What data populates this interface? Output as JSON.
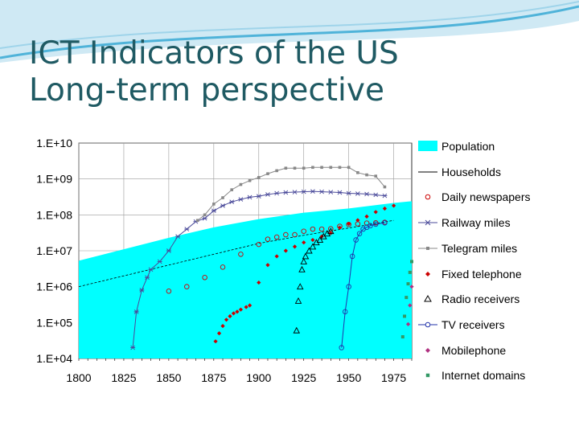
{
  "slide": {
    "title_line1": "ICT Indicators of the US",
    "title_line2": "Long-term perspective",
    "colors": {
      "title": "#1f5a63",
      "swoosh": "#4fb3d9"
    }
  },
  "chart_data": {
    "type": "scatter",
    "title": "",
    "xlabel": "",
    "ylabel": "",
    "x_scale": "linear",
    "y_scale": "log",
    "xlim": [
      1800,
      1985
    ],
    "ylim": [
      10000,
      10000000000
    ],
    "grid": {
      "x": true,
      "y": true
    },
    "legend_position": "right",
    "x_ticks": [
      "1800",
      "1825",
      "1850",
      "1875",
      "1900",
      "1925",
      "1950",
      "1975"
    ],
    "x_tick_values": [
      1800,
      1825,
      1850,
      1875,
      1900,
      1925,
      1950,
      1975
    ],
    "y_ticks": [
      "1.E+04",
      "1.E+05",
      "1.E+06",
      "1.E+07",
      "1.E+08",
      "1.E+09",
      "1.E+10"
    ],
    "y_tick_values": [
      10000,
      100000,
      1000000,
      10000000,
      100000000,
      1000000000,
      10000000000
    ],
    "series": [
      {
        "name": "Population",
        "style": "area",
        "color": "#00ffff",
        "x": [
          1800,
          1825,
          1850,
          1875,
          1900,
          1925,
          1950,
          1975,
          1985
        ],
        "y": [
          5300000,
          11000000,
          23000000,
          45000000,
          76000000,
          115000000,
          151000000,
          215000000,
          240000000
        ]
      },
      {
        "name": "Households",
        "style": "line",
        "color": "#000000",
        "x": [
          1800,
          1825,
          1850,
          1875,
          1900,
          1925,
          1950,
          1975
        ],
        "y": [
          1000000,
          2000000,
          4000000,
          8000000,
          16000000,
          27000000,
          43000000,
          70000000
        ]
      },
      {
        "name": "Daily newspapers",
        "style": "circle",
        "color": "#cc0000",
        "x": [
          1850,
          1860,
          1870,
          1880,
          1890,
          1900,
          1905,
          1910,
          1915,
          1920,
          1925,
          1930,
          1935,
          1940,
          1945,
          1950,
          1955,
          1960,
          1965,
          1970
        ],
        "y": [
          750000,
          1000000,
          1800000,
          3500000,
          8000000,
          15000000,
          21000000,
          24000000,
          28000000,
          28000000,
          35000000,
          40000000,
          40000000,
          41000000,
          48000000,
          54000000,
          56000000,
          59000000,
          60000000,
          62000000
        ]
      },
      {
        "name": "Railway miles",
        "style": "x",
        "color": "#4a4a9a",
        "x": [
          1830,
          1832,
          1835,
          1838,
          1840,
          1845,
          1850,
          1855,
          1860,
          1865,
          1870,
          1875,
          1880,
          1885,
          1890,
          1895,
          1900,
          1905,
          1910,
          1915,
          1920,
          1925,
          1930,
          1935,
          1940,
          1945,
          1950,
          1955,
          1960,
          1965,
          1970
        ],
        "y": [
          20000,
          200000,
          800000,
          1800000,
          3000000,
          5000000,
          10000000,
          25000000,
          40000000,
          65000000,
          80000000,
          130000000,
          180000000,
          230000000,
          270000000,
          310000000,
          330000000,
          370000000,
          400000000,
          420000000,
          430000000,
          440000000,
          450000000,
          440000000,
          430000000,
          420000000,
          400000000,
          390000000,
          380000000,
          360000000,
          340000000
        ]
      },
      {
        "name": "Telegram miles",
        "style": "dot",
        "color": "#888888",
        "x": [
          1866,
          1870,
          1875,
          1880,
          1885,
          1890,
          1895,
          1900,
          1905,
          1910,
          1915,
          1920,
          1925,
          1930,
          1935,
          1940,
          1945,
          1950,
          1955,
          1960,
          1965,
          1970
        ],
        "y": [
          70000000,
          100000000,
          200000000,
          300000000,
          500000000,
          700000000,
          900000000,
          1100000000,
          1400000000,
          1700000000,
          2000000000,
          2000000000,
          2000000000,
          2100000000,
          2100000000,
          2100000000,
          2100000000,
          2100000000,
          1500000000,
          1300000000,
          1200000000,
          600000000
        ]
      },
      {
        "name": "Fixed telephone",
        "style": "diamond",
        "color": "#cc0000",
        "x": [
          1876,
          1878,
          1880,
          1882,
          1884,
          1886,
          1888,
          1890,
          1893,
          1895,
          1900,
          1905,
          1910,
          1915,
          1920,
          1925,
          1930,
          1935,
          1940,
          1945,
          1950,
          1955,
          1960,
          1965,
          1970,
          1975
        ],
        "y": [
          30000,
          50000,
          80000,
          120000,
          150000,
          180000,
          200000,
          230000,
          270000,
          300000,
          1300000,
          4000000,
          7000000,
          10000000,
          13000000,
          17000000,
          20000000,
          25000000,
          31000000,
          44000000,
          56000000,
          71000000,
          90000000,
          120000000,
          150000000,
          180000000
        ]
      },
      {
        "name": "Radio receivers",
        "style": "triangle",
        "color": "#000000",
        "x": [
          1921,
          1922,
          1923,
          1924,
          1925,
          1926,
          1928,
          1930,
          1932,
          1934,
          1936,
          1938,
          1940
        ],
        "y": [
          60000,
          400000,
          1000000,
          3000000,
          5000000,
          7000000,
          10000000,
          13000000,
          17000000,
          20000000,
          25000000,
          30000000,
          35000000
        ]
      },
      {
        "name": "TV receivers",
        "style": "line-circle",
        "color": "#2233aa",
        "x": [
          1946,
          1948,
          1950,
          1952,
          1954,
          1956,
          1958,
          1960,
          1962,
          1965,
          1970
        ],
        "y": [
          20000,
          200000,
          1000000,
          7000000,
          20000000,
          30000000,
          40000000,
          45000000,
          50000000,
          55000000,
          60000000
        ]
      },
      {
        "name": "Mobilephone",
        "style": "diamond",
        "color": "#b03080",
        "x": [
          1983,
          1984,
          1985
        ],
        "y": [
          90000,
          300000,
          1000000
        ]
      },
      {
        "name": "Internet domains",
        "style": "square",
        "color": "#339966",
        "x": [
          1980,
          1981,
          1982,
          1983,
          1984,
          1985
        ],
        "y": [
          40000,
          150000,
          500000,
          1200000,
          2500000,
          5000000
        ]
      }
    ]
  }
}
